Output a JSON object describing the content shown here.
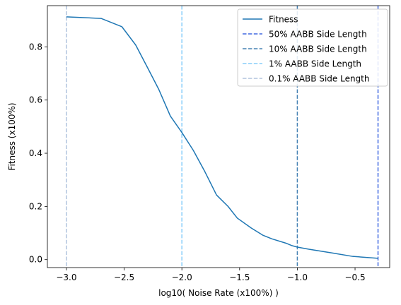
{
  "chart_data": {
    "type": "line",
    "title": "",
    "xlabel": "log10( Noise Rate (x100%) )",
    "ylabel": "Fitness (x100%)",
    "xlim": [
      -3.165,
      -0.2
    ],
    "ylim": [
      -0.03,
      0.955
    ],
    "xticks": [
      -3.0,
      -2.5,
      -2.0,
      -1.5,
      -1.0,
      -0.5
    ],
    "xtick_labels": [
      "−3.0",
      "−2.5",
      "−2.0",
      "−1.5",
      "−1.0",
      "−0.5"
    ],
    "yticks": [
      0.0,
      0.2,
      0.4,
      0.6,
      0.8
    ],
    "ytick_labels": [
      "0.0",
      "0.2",
      "0.4",
      "0.6",
      "0.8"
    ],
    "grid": false,
    "legend_position": "top-right",
    "series": [
      {
        "name": "Fitness",
        "color": "#1f77b4",
        "style": "solid",
        "x": [
          -3.0,
          -2.7,
          -2.52,
          -2.4,
          -2.3,
          -2.2,
          -2.1,
          -2.0,
          -1.9,
          -1.8,
          -1.7,
          -1.6,
          -1.52,
          -1.4,
          -1.3,
          -1.22,
          -1.1,
          -1.05,
          -1.0,
          -0.9,
          -0.7,
          -0.52,
          -0.3
        ],
        "y": [
          0.913,
          0.907,
          0.876,
          0.807,
          0.724,
          0.64,
          0.54,
          0.478,
          0.41,
          0.33,
          0.243,
          0.2,
          0.156,
          0.119,
          0.092,
          0.078,
          0.062,
          0.053,
          0.047,
          0.039,
          0.025,
          0.012,
          0.005
        ]
      }
    ],
    "reference_lines": [
      {
        "name": "50% AABB Side Length",
        "x": -0.301,
        "color": "#4169e1",
        "style": "dashed"
      },
      {
        "name": "10% AABB Side Length",
        "x": -1.0,
        "color": "#4682b4",
        "style": "dashed"
      },
      {
        "name": "1% AABB Side Length",
        "x": -2.0,
        "color": "#87cefa",
        "style": "dashed"
      },
      {
        "name": "0.1% AABB Side Length",
        "x": -3.0,
        "color": "#b0c4de",
        "style": "dashed"
      }
    ]
  }
}
